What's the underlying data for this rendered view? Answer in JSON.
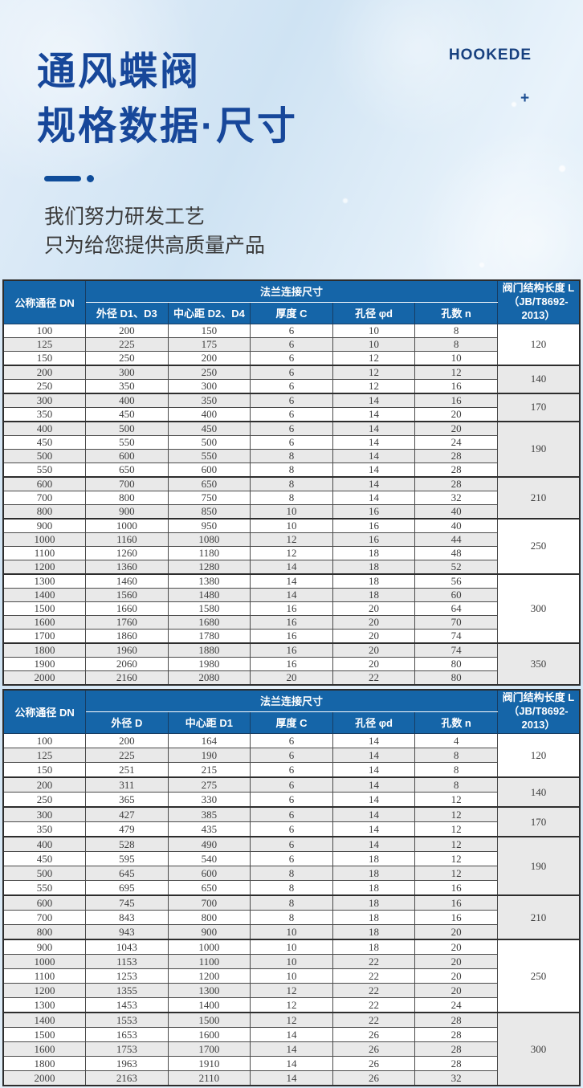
{
  "page": {
    "brand": "HOOKEDE",
    "plus_mark": "+",
    "title_line1": "通风蝶阀",
    "title_line2": "规格数据·尺寸",
    "subtitle_line1": "我们努力研发工艺",
    "subtitle_line2": "只为给您提供高质量产品"
  },
  "colors": {
    "title_blue": "#17479a",
    "table_header_blue": "#1565a8",
    "row_stripe_gray": "#e9e9e9",
    "border_dark": "#2d2d2d",
    "background_blue": "#d3e6f4"
  },
  "tables": [
    {
      "header": {
        "dn": "公称通径 DN",
        "group": "法兰连接尺寸",
        "cols": [
          "外径 D1、D3",
          "中心距 D2、D4",
          "厚度 C",
          "孔径 φd",
          "孔数 n"
        ],
        "length_line1": "阀门结构长度 L",
        "length_line2": "（JB/T8692-2013）"
      },
      "rows": [
        [
          100,
          200,
          150,
          6,
          10,
          8
        ],
        [
          125,
          225,
          175,
          6,
          10,
          8
        ],
        [
          150,
          250,
          200,
          6,
          12,
          10
        ],
        [
          200,
          300,
          250,
          6,
          12,
          12
        ],
        [
          250,
          350,
          300,
          6,
          12,
          16
        ],
        [
          300,
          400,
          350,
          6,
          14,
          16
        ],
        [
          350,
          450,
          400,
          6,
          14,
          20
        ],
        [
          400,
          500,
          450,
          6,
          14,
          20
        ],
        [
          450,
          550,
          500,
          6,
          14,
          24
        ],
        [
          500,
          600,
          550,
          8,
          14,
          28
        ],
        [
          550,
          650,
          600,
          8,
          14,
          28
        ],
        [
          600,
          700,
          650,
          8,
          14,
          28
        ],
        [
          700,
          800,
          750,
          8,
          14,
          32
        ],
        [
          800,
          900,
          850,
          10,
          16,
          40
        ],
        [
          900,
          1000,
          950,
          10,
          16,
          40
        ],
        [
          1000,
          1160,
          1080,
          12,
          16,
          44
        ],
        [
          1100,
          1260,
          1180,
          12,
          18,
          48
        ],
        [
          1200,
          1360,
          1280,
          14,
          18,
          52
        ],
        [
          1300,
          1460,
          1380,
          14,
          18,
          56
        ],
        [
          1400,
          1560,
          1480,
          14,
          18,
          60
        ],
        [
          1500,
          1660,
          1580,
          16,
          20,
          64
        ],
        [
          1600,
          1760,
          1680,
          16,
          20,
          70
        ],
        [
          1700,
          1860,
          1780,
          16,
          20,
          74
        ],
        [
          1800,
          1960,
          1880,
          16,
          20,
          74
        ],
        [
          1900,
          2060,
          1980,
          16,
          20,
          80
        ],
        [
          2000,
          2160,
          2080,
          20,
          22,
          80
        ]
      ],
      "groups": [
        {
          "label": "120",
          "span": 3
        },
        {
          "label": "140",
          "span": 2
        },
        {
          "label": "170",
          "span": 2
        },
        {
          "label": "190",
          "span": 4
        },
        {
          "label": "210",
          "span": 3
        },
        {
          "label": "250",
          "span": 4
        },
        {
          "label": "300",
          "span": 5
        },
        {
          "label": "350",
          "span": 3
        }
      ]
    },
    {
      "header": {
        "dn": "公称通径 DN",
        "group": "法兰连接尺寸",
        "cols": [
          "外径 D",
          "中心距 D1",
          "厚度 C",
          "孔径 φd",
          "孔数 n"
        ],
        "length_line1": "阀门结构长度 L",
        "length_line2": "（JB/T8692-2013）"
      },
      "rows": [
        [
          100,
          200,
          164,
          6,
          14,
          4
        ],
        [
          125,
          225,
          190,
          6,
          14,
          8
        ],
        [
          150,
          251,
          215,
          6,
          14,
          8
        ],
        [
          200,
          311,
          275,
          6,
          14,
          8
        ],
        [
          250,
          365,
          330,
          6,
          14,
          12
        ],
        [
          300,
          427,
          385,
          6,
          14,
          12
        ],
        [
          350,
          479,
          435,
          6,
          14,
          12
        ],
        [
          400,
          528,
          490,
          6,
          14,
          12
        ],
        [
          450,
          595,
          540,
          6,
          18,
          12
        ],
        [
          500,
          645,
          600,
          8,
          18,
          12
        ],
        [
          550,
          695,
          650,
          8,
          18,
          16
        ],
        [
          600,
          745,
          700,
          8,
          18,
          16
        ],
        [
          700,
          843,
          800,
          8,
          18,
          16
        ],
        [
          800,
          943,
          900,
          10,
          18,
          20
        ],
        [
          900,
          1043,
          1000,
          10,
          18,
          20
        ],
        [
          1000,
          1153,
          1100,
          10,
          22,
          20
        ],
        [
          1100,
          1253,
          1200,
          10,
          22,
          20
        ],
        [
          1200,
          1355,
          1300,
          12,
          22,
          20
        ],
        [
          1300,
          1453,
          1400,
          12,
          22,
          24
        ],
        [
          1400,
          1553,
          1500,
          12,
          22,
          28
        ],
        [
          1500,
          1653,
          1600,
          14,
          26,
          28
        ],
        [
          1600,
          1753,
          1700,
          14,
          26,
          28
        ],
        [
          1800,
          1963,
          1910,
          14,
          26,
          28
        ],
        [
          2000,
          2163,
          2110,
          14,
          26,
          32
        ]
      ],
      "groups": [
        {
          "label": "120",
          "span": 3
        },
        {
          "label": "140",
          "span": 2
        },
        {
          "label": "170",
          "span": 2
        },
        {
          "label": "190",
          "span": 4
        },
        {
          "label": "210",
          "span": 3
        },
        {
          "label": "250",
          "span": 5
        },
        {
          "label": "300",
          "span": 5
        }
      ]
    }
  ]
}
